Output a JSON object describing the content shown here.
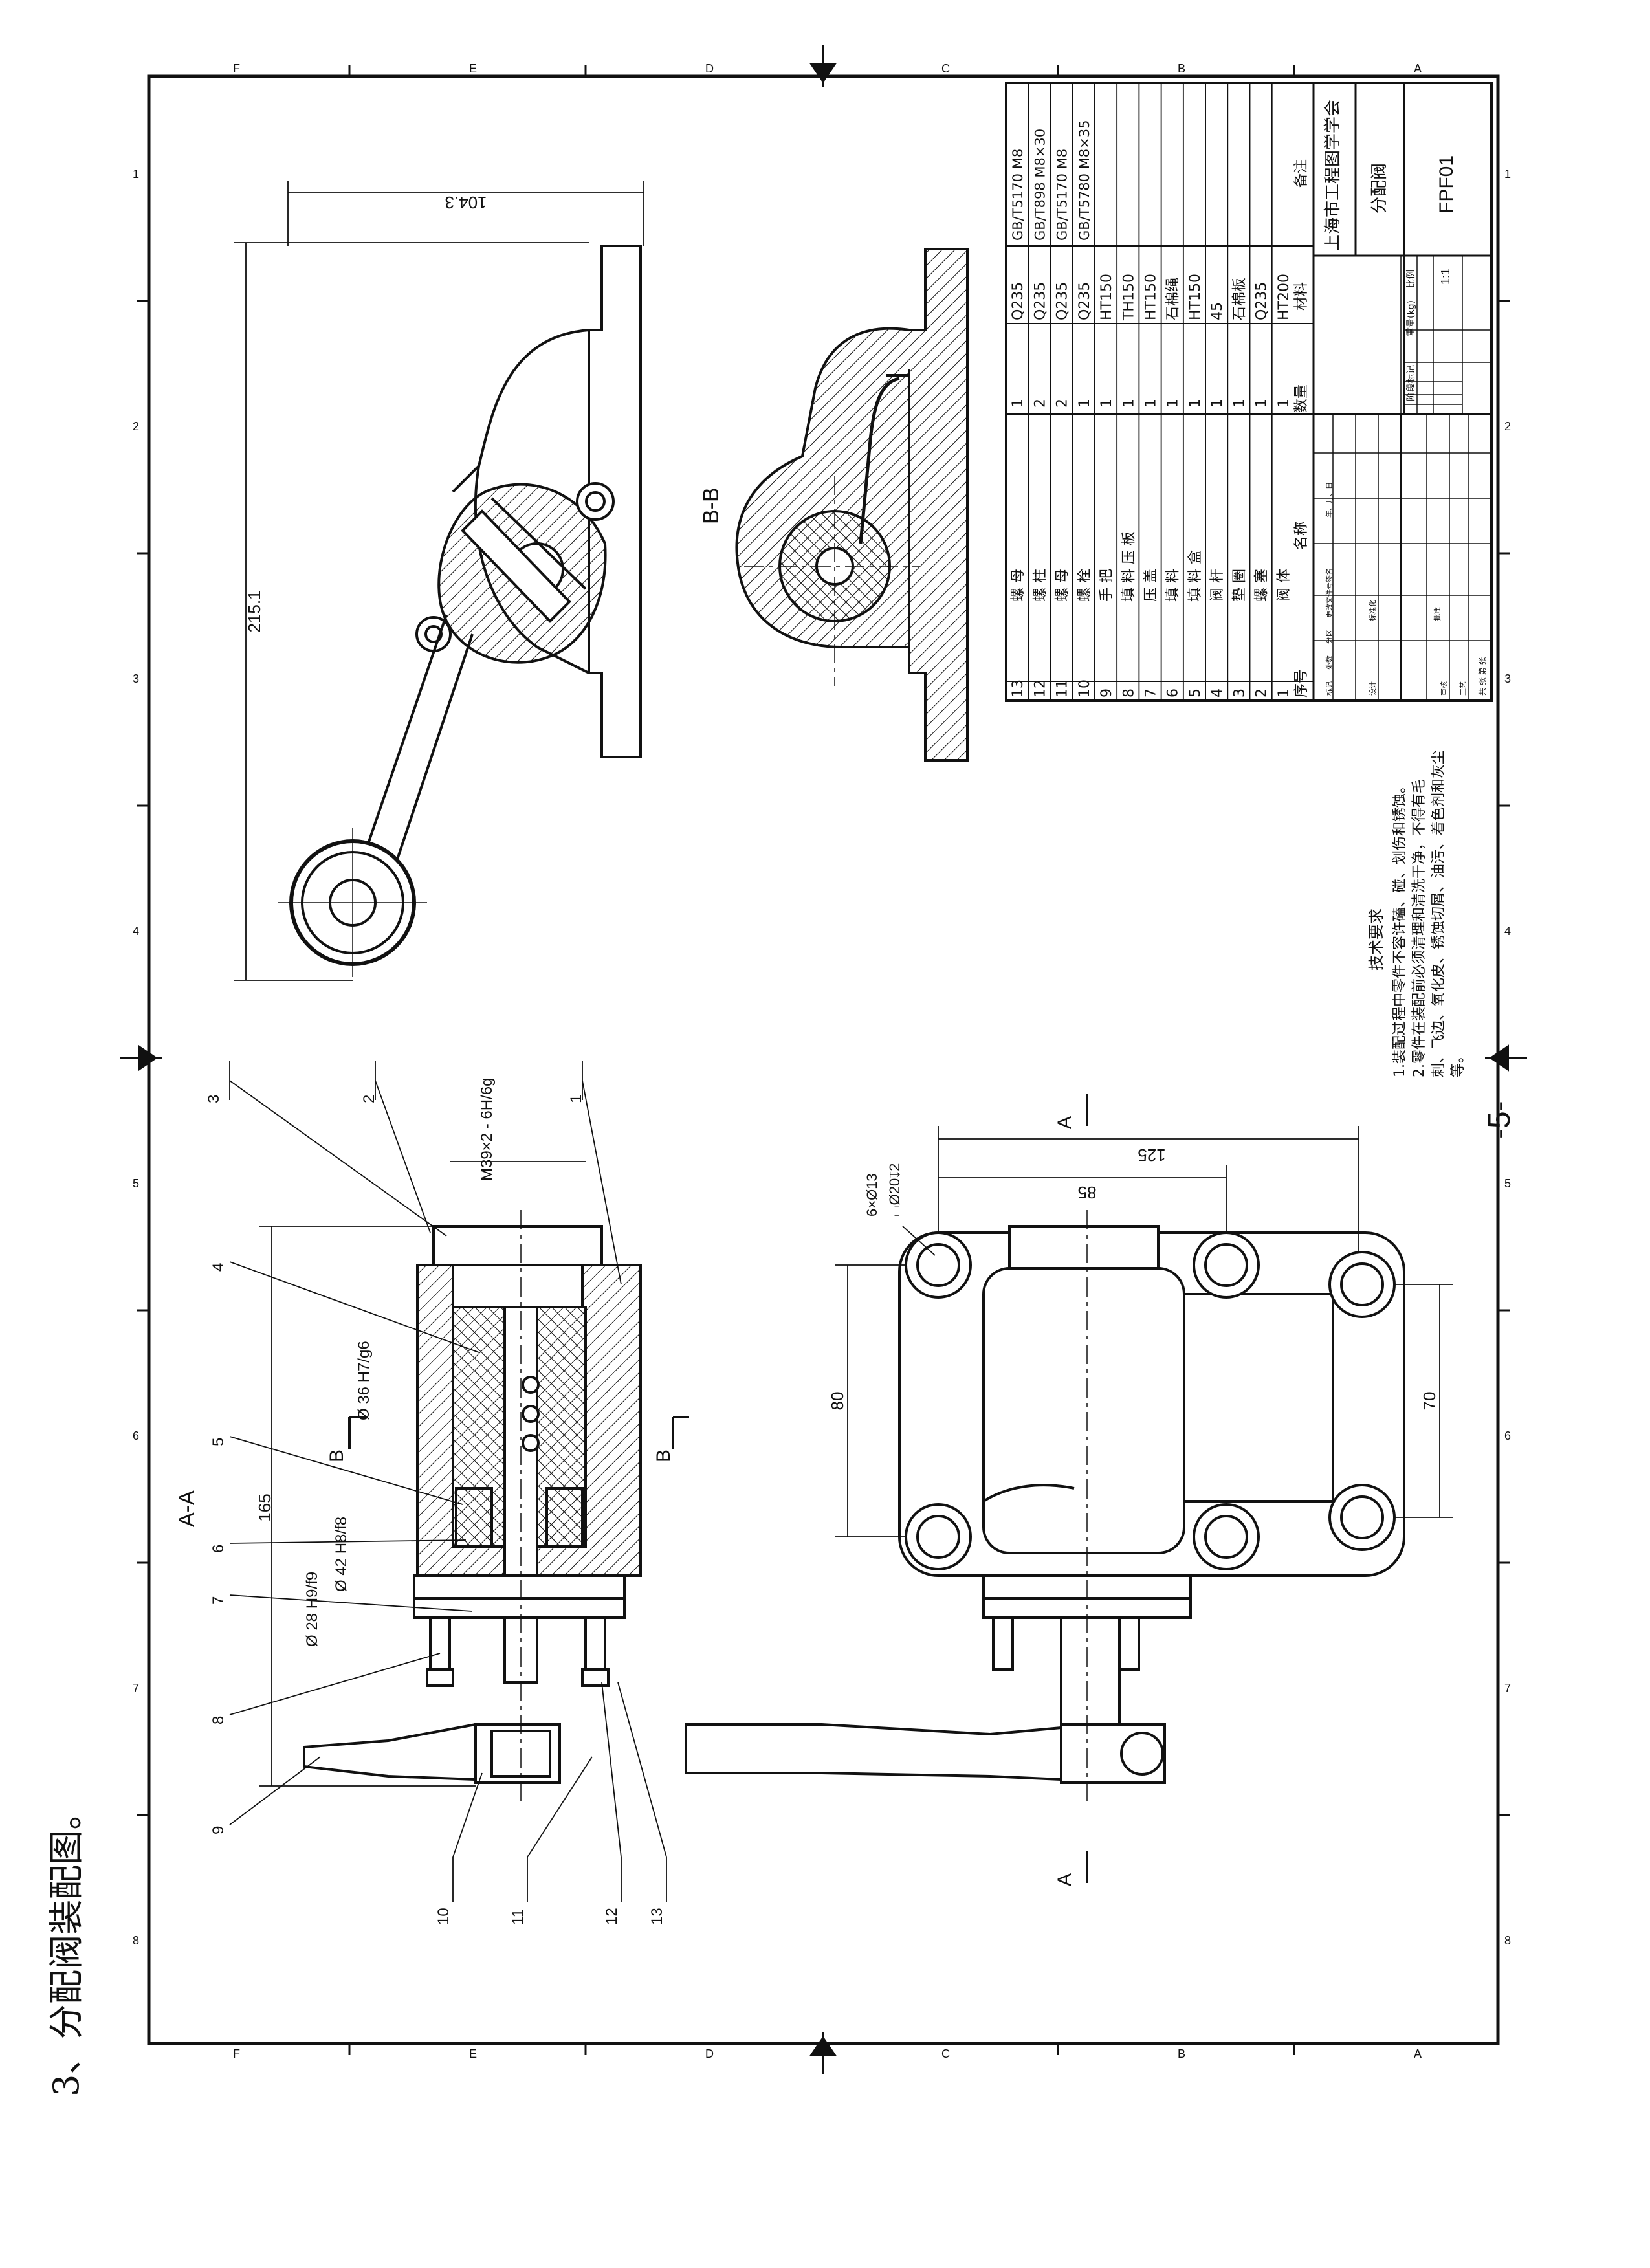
{
  "page": {
    "caption": "3、分配阀装配图。",
    "page_number": "-5-"
  },
  "border": {
    "zone_letters": [
      "F",
      "E",
      "D",
      "C",
      "B",
      "A"
    ],
    "zone_numbers": [
      "1",
      "2",
      "3",
      "4",
      "5",
      "6",
      "7",
      "8"
    ]
  },
  "views": {
    "aa_label": "A-A",
    "bb_label": "B-B",
    "section_b": "B",
    "section_a": "A"
  },
  "dimensions": {
    "length_top": "104.3",
    "height_top": "215.1",
    "total_length": "165",
    "thread": "M39×2 - 6H/6g",
    "fit_36": "Ø 36 H7/g6",
    "fit_42": "Ø 42 H8/f8",
    "fit_28": "Ø 28 H9/f9",
    "holes": "6×Ø13",
    "counterbore": "⌴Ø20↧2",
    "bolt_spacing_125": "125",
    "bolt_spacing_85": "85",
    "bolt_spacing_80": "80",
    "bolt_spacing_70": "70"
  },
  "balloons": [
    "1",
    "2",
    "3",
    "4",
    "5",
    "6",
    "7",
    "8",
    "9",
    "10",
    "11",
    "12",
    "13"
  ],
  "technical_requirements": {
    "title": "技术要求",
    "line1": "1.装配过程中零件不容许磕、碰、划伤和锈蚀。",
    "line2": "2.零件在装配前必须清理和清洗干净，不得有毛",
    "line3": "刺、飞边、氧化皮、锈蚀切屑、油污、着色剂和灰尘",
    "line4": "等。"
  },
  "bom": {
    "headers": {
      "no": "序号",
      "name": "名称",
      "qty": "数量",
      "material": "材料",
      "remark": "备注"
    },
    "rows": [
      {
        "no": "13",
        "name": "螺 母",
        "qty": "1",
        "material": "Q235",
        "remark": "GB/T5170 M8"
      },
      {
        "no": "12",
        "name": "螺 柱",
        "qty": "2",
        "material": "Q235",
        "remark": "GB/T898 M8×30"
      },
      {
        "no": "11",
        "name": "螺 母",
        "qty": "2",
        "material": "Q235",
        "remark": "GB/T5170 M8"
      },
      {
        "no": "10",
        "name": "螺 栓",
        "qty": "1",
        "material": "Q235",
        "remark": "GB/T5780 M8×35"
      },
      {
        "no": "9",
        "name": "手 把",
        "qty": "1",
        "material": "HT150",
        "remark": ""
      },
      {
        "no": "8",
        "name": "填 料 压 板",
        "qty": "1",
        "material": "TH150",
        "remark": ""
      },
      {
        "no": "7",
        "name": "压 盖",
        "qty": "1",
        "material": "HT150",
        "remark": ""
      },
      {
        "no": "6",
        "name": "填 料",
        "qty": "1",
        "material": "石棉绳",
        "remark": ""
      },
      {
        "no": "5",
        "name": "填 料 盒",
        "qty": "1",
        "material": "HT150",
        "remark": ""
      },
      {
        "no": "4",
        "name": "阀 杆",
        "qty": "1",
        "material": "45",
        "remark": ""
      },
      {
        "no": "3",
        "name": "垫 圈",
        "qty": "1",
        "material": "石棉板",
        "remark": ""
      },
      {
        "no": "2",
        "name": "螺 塞",
        "qty": "1",
        "material": "Q235",
        "remark": ""
      },
      {
        "no": "1",
        "name": "阀 体",
        "qty": "1",
        "material": "HT200",
        "remark": ""
      }
    ]
  },
  "title_block": {
    "company": "上海市工程图学学会",
    "drawing_name": "分配阀",
    "drawing_no": "FPF01",
    "scale_label": "比例",
    "scale": "1:1",
    "weight_label": "重量(kg)",
    "stage_label": "阶段标记",
    "rev_cols": [
      "标记",
      "处数",
      "分区",
      "更改文件号",
      "签名",
      "年、月、日"
    ],
    "sign_rows": [
      "设计",
      "审核",
      "工艺"
    ],
    "sign_cols": [
      "标准化",
      "批准"
    ],
    "sheet_note": "共 张 第 张"
  },
  "colors": {
    "ink": "#111111",
    "paper": "#ffffff"
  }
}
